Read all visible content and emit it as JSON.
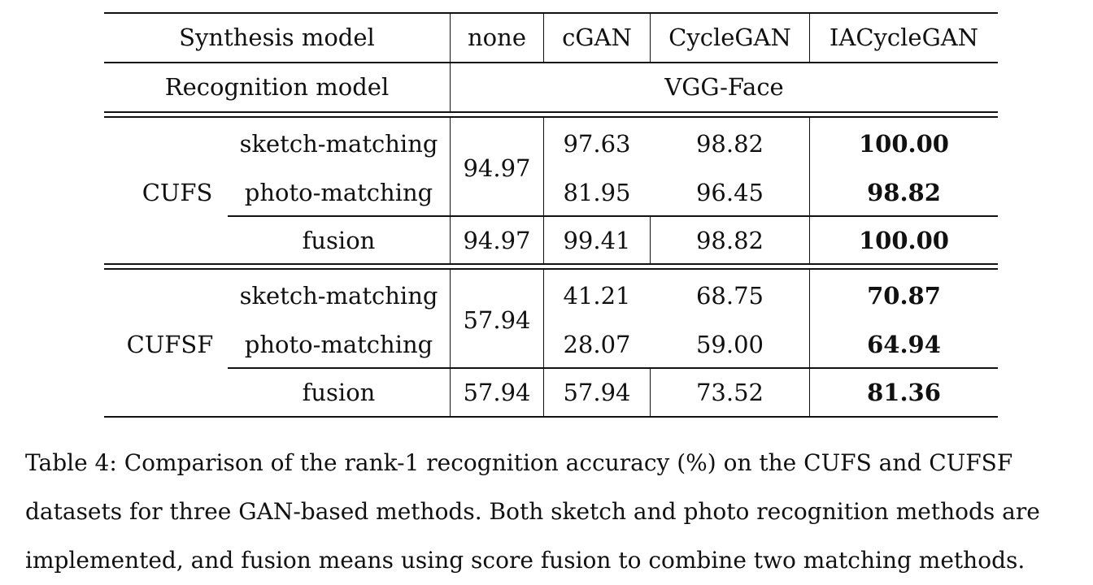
{
  "table": {
    "header": {
      "synthesis_label": "Synthesis model",
      "recognition_label": "Recognition model",
      "columns": [
        "none",
        "cGAN",
        "CycleGAN",
        "IACycleGAN"
      ],
      "recognition_model": "VGG-Face"
    },
    "groups": [
      {
        "dataset": "CUFS",
        "rows": [
          {
            "method": "sketch-matching",
            "cGAN": "97.63",
            "CycleGAN": "98.82",
            "IACycleGAN": "100.00"
          },
          {
            "method": "photo-matching",
            "cGAN": "81.95",
            "CycleGAN": "96.45",
            "IACycleGAN": "98.82"
          }
        ],
        "none_shared": "94.97",
        "fusion": {
          "method": "fusion",
          "none": "94.97",
          "cGAN": "99.41",
          "CycleGAN": "98.82",
          "IACycleGAN": "100.00"
        }
      },
      {
        "dataset": "CUFSF",
        "rows": [
          {
            "method": "sketch-matching",
            "cGAN": "41.21",
            "CycleGAN": "68.75",
            "IACycleGAN": "70.87"
          },
          {
            "method": "photo-matching",
            "cGAN": "28.07",
            "CycleGAN": "59.00",
            "IACycleGAN": "64.94"
          }
        ],
        "none_shared": "57.94",
        "fusion": {
          "method": "fusion",
          "none": "57.94",
          "cGAN": "57.94",
          "CycleGAN": "73.52",
          "IACycleGAN": "81.36"
        }
      }
    ]
  },
  "caption": {
    "line1": "Table 4: Comparison of the rank-1 recognition accuracy (%) on the CUFS and CUFSF",
    "line2": "datasets for three GAN-based methods. Both sketch and photo recognition methods are",
    "line3": "implemented, and fusion means using score fusion to combine two matching methods."
  }
}
